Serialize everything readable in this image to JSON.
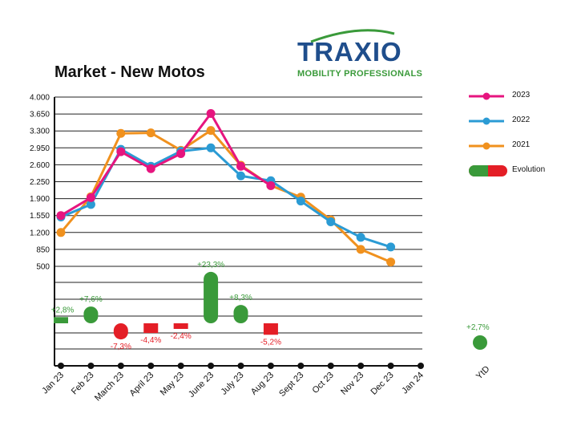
{
  "title": "Market - New Motos",
  "logo": {
    "name": "TRAXIO",
    "tagline": "MOBILITY PROFESSIONALS"
  },
  "colors": {
    "2023": "#e6157f",
    "2022": "#2b9bd4",
    "2021": "#f0911e",
    "positive": "#3a9a3a",
    "negative": "#e41e26"
  },
  "chart_data": {
    "type": "line",
    "categories": [
      "Jan 23",
      "Feb 23",
      "March 23",
      "April 23",
      "May 23",
      "June 23",
      "July 23",
      "Aug 23",
      "Sept 23",
      "Oct 23",
      "Nov 23",
      "Dec 23",
      "Jan 24"
    ],
    "yticks": [
      "4.000",
      "3.650",
      "3.300",
      "2.950",
      "2.600",
      "2.250",
      "1.900",
      "1.550",
      "1.200",
      "850",
      "500"
    ],
    "ylim": [
      500,
      4000
    ],
    "series": [
      {
        "name": "2023",
        "values": [
          1550,
          1920,
          2870,
          2520,
          2830,
          3660,
          2570,
          2170,
          null,
          null,
          null,
          null,
          null
        ]
      },
      {
        "name": "2022",
        "values": [
          1520,
          1780,
          2920,
          2570,
          2880,
          2950,
          2370,
          2270,
          1850,
          1420,
          1100,
          900,
          null
        ]
      },
      {
        "name": "2021",
        "values": [
          1200,
          1940,
          3250,
          3260,
          2900,
          3310,
          2590,
          2170,
          1930,
          1460,
          850,
          590,
          null
        ]
      }
    ],
    "evolution": {
      "name": "Evolution",
      "values": [
        2.8,
        7.6,
        -7.3,
        -4.4,
        -2.4,
        23.3,
        8.3,
        -5.2,
        null,
        null,
        null,
        null,
        null
      ],
      "labels": [
        "+2,8%",
        "+7,6%",
        "-7,3%",
        "-4,4%",
        "-2,4%",
        "+23,3%",
        "+8,3%",
        "-5,2%",
        "",
        "",
        "",
        "",
        ""
      ]
    },
    "ytd": {
      "category": "YtD",
      "value": 2.7,
      "label": "+2,7%"
    },
    "legend": [
      "2023",
      "2022",
      "2021",
      "Evolution"
    ],
    "legend_position": "right",
    "grid": true
  }
}
